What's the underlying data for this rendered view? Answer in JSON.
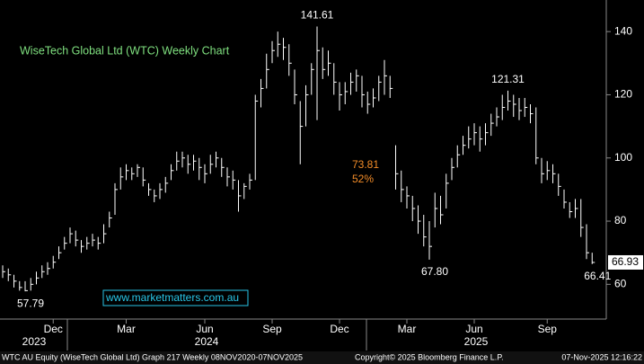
{
  "chart_data": {
    "type": "ohlc",
    "title": "WiseTech Global Ltd (WTC) Weekly Chart",
    "watermark": "www.marketmatters.com.au",
    "footer": [
      "WTC AU Equity (WiseTech Global Ltd) Graph 217 Weekly 08NOV2020-07NOV2025",
      "Copyright© 2025 Bloomberg Finance L.P.",
      "07-Nov-2025 12:16:22"
    ],
    "note": [
      "73.81",
      "52%"
    ],
    "color": "#ffffff",
    "grid": false,
    "categories": [
      null,
      null,
      null,
      null,
      null,
      null,
      null,
      null,
      null,
      "Dec",
      null,
      null,
      null,
      null,
      null,
      null,
      null,
      null,
      null,
      null,
      null,
      null,
      "Mar",
      null,
      null,
      null,
      null,
      null,
      null,
      null,
      null,
      null,
      null,
      null,
      null,
      null,
      "Jun",
      null,
      null,
      null,
      null,
      null,
      null,
      null,
      null,
      null,
      null,
      null,
      "Sep",
      null,
      null,
      null,
      null,
      null,
      null,
      null,
      null,
      null,
      null,
      null,
      "Dec",
      null,
      null,
      null,
      null,
      null,
      null,
      null,
      null,
      null,
      null,
      null,
      "Mar",
      null,
      null,
      null,
      null,
      null,
      null,
      null,
      null,
      null,
      null,
      null,
      "Jun",
      null,
      null,
      null,
      null,
      null,
      null,
      null,
      null,
      null,
      null,
      null,
      null,
      "Sep",
      null,
      null,
      null,
      null,
      null,
      null,
      null,
      null
    ],
    "years": [
      "2023",
      "2024",
      "2025"
    ],
    "high": [
      66,
      65,
      63,
      61,
      61,
      62,
      64,
      66,
      67,
      69,
      72,
      75,
      78,
      77,
      74,
      75,
      76,
      75,
      79,
      83,
      92,
      97,
      98,
      97,
      98,
      97,
      92,
      90,
      92,
      94,
      98,
      102,
      102,
      101,
      101,
      100,
      98,
      101,
      102,
      100,
      97,
      96,
      93,
      92,
      95,
      120,
      125,
      133,
      137,
      140,
      138,
      136,
      128,
      118,
      123,
      130,
      141.61,
      135,
      134,
      130,
      124,
      124,
      127,
      128,
      126,
      121,
      122,
      126,
      131,
      126,
      104,
      96,
      91,
      88,
      85,
      82,
      80,
      89,
      88,
      95,
      100,
      104,
      107,
      110,
      111,
      110,
      111,
      114,
      116,
      120,
      121.31,
      120,
      119,
      119,
      117,
      116,
      100,
      99,
      98,
      95,
      90,
      86,
      87,
      87,
      79,
      70
    ],
    "low": [
      62,
      61,
      59,
      58,
      57.79,
      58,
      60,
      62,
      63,
      65,
      68,
      71,
      73,
      72,
      70,
      71,
      72,
      71,
      73,
      78,
      82,
      90,
      93,
      93,
      94,
      91,
      88,
      86,
      87,
      89,
      93,
      96,
      97,
      95,
      96,
      93,
      92,
      95,
      97,
      94,
      91,
      90,
      83,
      87,
      90,
      93,
      116,
      122,
      130,
      132,
      131,
      126,
      117,
      98,
      110,
      120,
      112,
      125,
      126,
      120,
      115,
      117,
      120,
      121,
      116,
      114,
      116,
      118,
      120,
      119,
      90,
      86,
      84,
      80,
      76,
      72,
      67.8,
      78,
      79,
      84,
      93,
      97,
      101,
      103,
      104,
      102,
      104,
      107,
      110,
      112,
      115,
      113,
      112,
      113,
      111,
      98,
      92,
      93,
      92,
      88,
      84,
      81,
      81,
      75,
      68,
      66.41
    ],
    "close": [
      64,
      63,
      61,
      59,
      58,
      60,
      62,
      64,
      65,
      67,
      70,
      73,
      76,
      74,
      72,
      73,
      74,
      73,
      76,
      81,
      90,
      94,
      96,
      95,
      97,
      93,
      90,
      88,
      90,
      92,
      96,
      99,
      100,
      98,
      99,
      97,
      95,
      98,
      100,
      97,
      94,
      93,
      88,
      91,
      93,
      118,
      122,
      128,
      134,
      136,
      135,
      130,
      120,
      110,
      120,
      128,
      134,
      128,
      130,
      124,
      120,
      121,
      124,
      126,
      120,
      117,
      119,
      124,
      126,
      122,
      95,
      90,
      88,
      84,
      80,
      75,
      72,
      84,
      82,
      92,
      97,
      101,
      104,
      106,
      108,
      106,
      108,
      111,
      113,
      116,
      118,
      117,
      115,
      116,
      114,
      100,
      95,
      96,
      95,
      91,
      86,
      83,
      84,
      78,
      70,
      66.93
    ],
    "value_labels": [
      {
        "text": "141.61",
        "value": 141.61
      },
      {
        "text": "121.31",
        "value": 121.31
      },
      {
        "text": "67.80",
        "value": 67.8
      },
      {
        "text": "57.79",
        "value": 57.79
      },
      {
        "text": "66.41",
        "value": 66.41
      }
    ],
    "last_label": "66.93",
    "ylim": [
      49,
      150
    ],
    "yticks": [
      60,
      80,
      100,
      120,
      140
    ]
  }
}
